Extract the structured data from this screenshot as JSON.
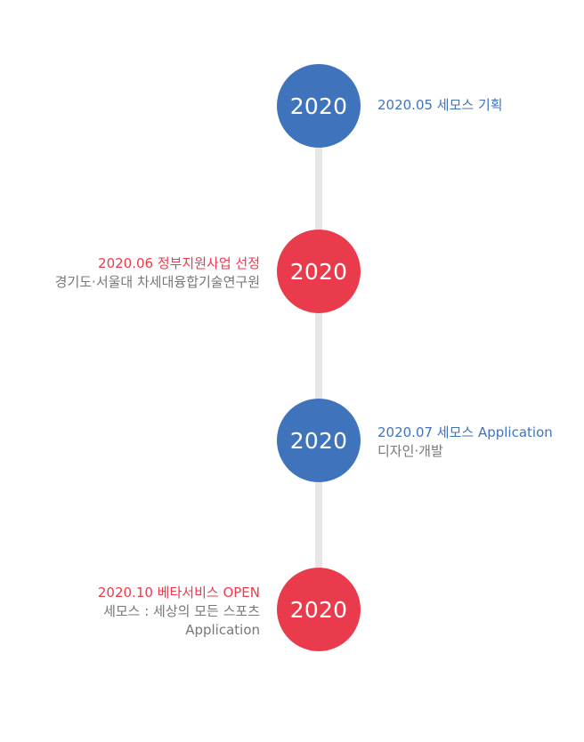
{
  "colors": {
    "blue": "#3f74bd",
    "red": "#ea3b4d",
    "line": "#e6e6e6",
    "desc": "#777777"
  },
  "timeline": {
    "items": [
      {
        "year": "2020",
        "title": "2020.05 세모스 기획",
        "description": ""
      },
      {
        "year": "2020",
        "title": "2020.06 정부지원사업 선정",
        "description": "경기도·서울대 차세대융합기술연구원"
      },
      {
        "year": "2020",
        "title": "2020.07 세모스 Application",
        "description": "디자인·개발"
      },
      {
        "year": "2020",
        "title": "2020.10 베타서비스 OPEN",
        "description": "세모스 : 세상의 모든 스포츠\nApplication"
      }
    ]
  }
}
